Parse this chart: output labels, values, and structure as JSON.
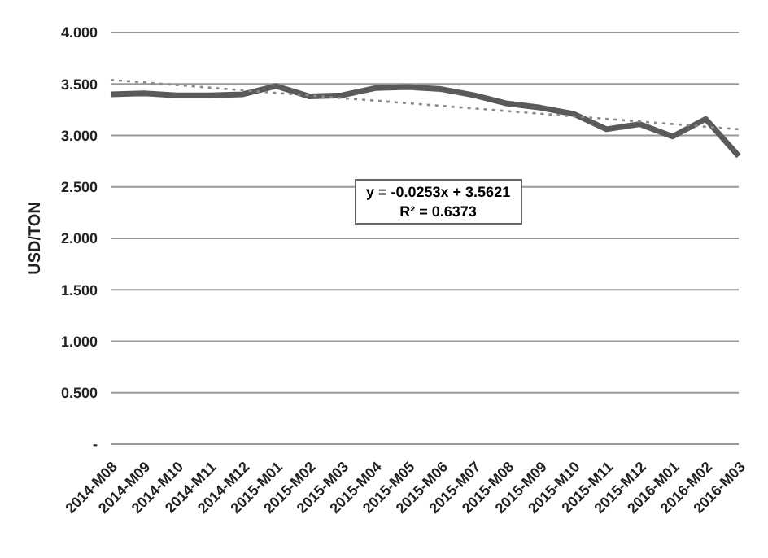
{
  "chart_data": {
    "type": "line",
    "ylabel": "USD/TON",
    "categories": [
      "2014-M08",
      "2014-M09",
      "2014-M10",
      "2014-M11",
      "2014-M12",
      "2015-M01",
      "2015-M02",
      "2015-M03",
      "2015-M04",
      "2015-M05",
      "2015-M06",
      "2015-M07",
      "2015-M08",
      "2015-M09",
      "2015-M10",
      "2015-M11",
      "2015-M12",
      "2016-M01",
      "2016-M02",
      "2016-M03"
    ],
    "series": [
      {
        "color": "#5a5a5a",
        "values": [
          3.4,
          3.41,
          3.39,
          3.39,
          3.4,
          3.48,
          3.38,
          3.39,
          3.46,
          3.47,
          3.45,
          3.39,
          3.31,
          3.27,
          3.21,
          3.06,
          3.11,
          2.99,
          3.16,
          2.8
        ]
      },
      {
        "color": "#8a8a8a",
        "line_style": "dotted",
        "values": [
          3.54,
          null,
          null,
          null,
          null,
          null,
          null,
          null,
          null,
          null,
          null,
          null,
          null,
          null,
          null,
          null,
          null,
          null,
          null,
          3.06
        ]
      }
    ],
    "ylim": [
      0,
      4
    ],
    "yticks": [
      {
        "value": 0,
        "label": "-"
      },
      {
        "value": 0.5,
        "label": "0.500"
      },
      {
        "value": 1,
        "label": "1.000"
      },
      {
        "value": 1.5,
        "label": "1.500"
      },
      {
        "value": 2,
        "label": "2.000"
      },
      {
        "value": 2.5,
        "label": "2.500"
      },
      {
        "value": 3,
        "label": "3.000"
      },
      {
        "value": 3.5,
        "label": "3.500"
      },
      {
        "value": 4,
        "label": "4.000"
      }
    ],
    "grid": "y",
    "marker": "none",
    "line_style": "solid",
    "annotations": [
      "y = -0.0253x + 3.5621",
      "R² = 0.6373"
    ]
  }
}
